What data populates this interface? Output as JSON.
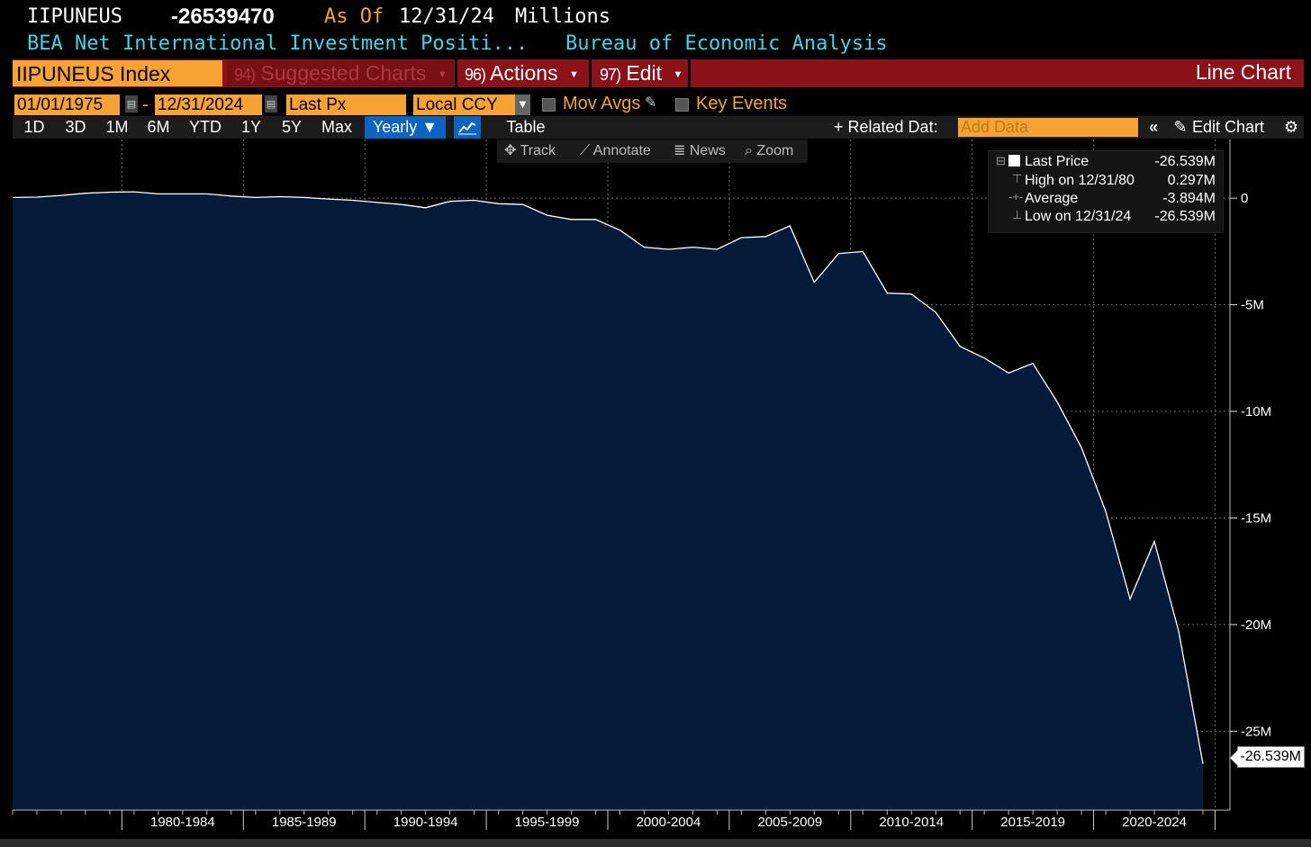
{
  "header": {
    "ticker": "IIPUNEUS",
    "price": "-26539470",
    "as_of_label": "As Of",
    "as_of_date": "12/31/24",
    "units": "Millions",
    "description": "BEA Net International Investment Positi...",
    "source": "Bureau of Economic Analysis"
  },
  "toolbar": {
    "security": "IIPUNEUS Index",
    "suggested_num": "94)",
    "suggested_label": "Suggested Charts",
    "actions_num": "96)",
    "actions_label": "Actions",
    "edit_num": "97)",
    "edit_label": "Edit",
    "chart_type": "Line Chart"
  },
  "controls": {
    "start_date": "01/01/1975",
    "end_date": "12/31/2024",
    "field": "Last Px",
    "currency": "Local CCY",
    "mov_avgs": "Mov Avgs",
    "key_events": "Key Events"
  },
  "periods": {
    "items": [
      "1D",
      "3D",
      "1M",
      "6M",
      "YTD",
      "1Y",
      "5Y",
      "Max"
    ],
    "frequency": "Yearly ▼",
    "table": "Table",
    "related": "+ Related Dat:",
    "add_data_placeholder": "Add Data",
    "edit_chart": "Edit Chart"
  },
  "tools": {
    "track": "Track",
    "annotate": "Annotate",
    "news": "News",
    "zoom": "Zoom"
  },
  "legend": {
    "last_price_label": "Last Price",
    "last_price_value": "-26.539M",
    "high_label": "High on 12/31/80",
    "high_value": "0.297M",
    "average_label": "Average",
    "average_value": "-3.894M",
    "low_label": "Low on 12/31/24",
    "low_value": "-26.539M"
  },
  "last_tag": "-26.539M",
  "colors": {
    "fill": "#041a38",
    "line": "#ffffff",
    "orange": "#f7a334",
    "red": "#8b1218",
    "cyan": "#3ed6e8"
  },
  "chart_data": {
    "type": "area",
    "x": [
      1975,
      1976,
      1977,
      1978,
      1979,
      1980,
      1981,
      1982,
      1983,
      1984,
      1985,
      1986,
      1987,
      1988,
      1989,
      1990,
      1991,
      1992,
      1993,
      1994,
      1995,
      1996,
      1997,
      1998,
      1999,
      2000,
      2001,
      2002,
      2003,
      2004,
      2005,
      2006,
      2007,
      2008,
      2009,
      2010,
      2011,
      2012,
      2013,
      2014,
      2015,
      2016,
      2017,
      2018,
      2019,
      2020,
      2021,
      2022,
      2023,
      2024
    ],
    "values": [
      0.03,
      0.05,
      0.13,
      0.23,
      0.28,
      0.297,
      0.2,
      0.2,
      0.2,
      0.1,
      0.03,
      0.07,
      0.03,
      -0.04,
      -0.1,
      -0.2,
      -0.3,
      -0.45,
      -0.15,
      -0.1,
      -0.26,
      -0.3,
      -0.8,
      -1.0,
      -1.0,
      -1.5,
      -2.3,
      -2.4,
      -2.3,
      -2.4,
      -1.85,
      -1.8,
      -1.3,
      -3.95,
      -2.6,
      -2.5,
      -4.45,
      -4.5,
      -5.35,
      -6.95,
      -7.5,
      -8.2,
      -7.75,
      -9.55,
      -11.7,
      -14.7,
      -18.8,
      -16.1,
      -20.3,
      -26.539
    ],
    "x_tick_labels": [
      "1980-1984",
      "1985-1989",
      "1990-1994",
      "1995-1999",
      "2000-2004",
      "2005-2009",
      "2010-2014",
      "2015-2019",
      "2020-2024"
    ],
    "y_tick_values": [
      0,
      -5,
      -10,
      -15,
      -20,
      -25
    ],
    "y_tick_labels": [
      "0",
      "-5M",
      "-10M",
      "-15M",
      "-20M",
      "-25M"
    ],
    "ylim": [
      -28.7,
      2.75
    ],
    "grid": true
  }
}
